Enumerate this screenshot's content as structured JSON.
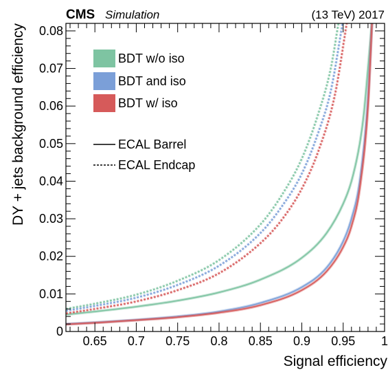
{
  "header": {
    "experiment": "CMS",
    "subtitle": "Simulation",
    "energy_year": "(13 TeV) 2017"
  },
  "chart_data": {
    "type": "line",
    "xlabel": "Signal efficiency",
    "ylabel": "DY + jets background efficiency",
    "xlim": [
      0.615,
      1.0
    ],
    "ylim": [
      0.0,
      0.082
    ],
    "x_ticks": [
      "0.65",
      "0.7",
      "0.75",
      "0.8",
      "0.85",
      "0.9",
      "0.95",
      "1"
    ],
    "y_ticks": [
      "0",
      "0.01",
      "0.02",
      "0.03",
      "0.04",
      "0.05",
      "0.06",
      "0.07",
      "0.08"
    ],
    "colors": {
      "bdt_wo_iso": "#7ec4a2",
      "bdt_and_iso": "#7b9fd8",
      "bdt_w_iso": "#d65a5a"
    },
    "legend_placement": "top-left",
    "legend": [
      {
        "label": "BDT w/o iso",
        "color_key": "bdt_wo_iso",
        "kind": "box"
      },
      {
        "label": "BDT and iso",
        "color_key": "bdt_and_iso",
        "kind": "box"
      },
      {
        "label": "BDT w/ iso",
        "color_key": "bdt_w_iso",
        "kind": "box"
      },
      {
        "label": "ECAL Barrel",
        "kind": "solid"
      },
      {
        "label": "ECAL Endcap",
        "kind": "dashed"
      }
    ],
    "series": [
      {
        "group": "BDT w/o iso",
        "region": "ECAL Barrel",
        "style": "solid",
        "color_key": "bdt_wo_iso",
        "x": [
          0.615,
          0.65,
          0.7,
          0.75,
          0.8,
          0.85,
          0.9,
          0.93,
          0.95,
          0.96,
          0.97,
          0.975,
          0.98,
          0.985
        ],
        "y": [
          0.0045,
          0.0053,
          0.0066,
          0.0082,
          0.0104,
          0.0138,
          0.0196,
          0.0262,
          0.034,
          0.04,
          0.05,
          0.058,
          0.07,
          0.083
        ]
      },
      {
        "group": "BDT and iso",
        "region": "ECAL Barrel",
        "style": "solid",
        "color_key": "bdt_and_iso",
        "x": [
          0.615,
          0.65,
          0.7,
          0.75,
          0.8,
          0.85,
          0.9,
          0.93,
          0.95,
          0.96,
          0.97,
          0.98,
          0.985
        ],
        "y": [
          0.002,
          0.0024,
          0.0031,
          0.004,
          0.0053,
          0.0076,
          0.0118,
          0.017,
          0.024,
          0.03,
          0.04,
          0.062,
          0.083
        ]
      },
      {
        "group": "BDT w/ iso",
        "region": "ECAL Barrel",
        "style": "solid",
        "color_key": "bdt_w_iso",
        "x": [
          0.615,
          0.65,
          0.7,
          0.75,
          0.8,
          0.85,
          0.9,
          0.93,
          0.95,
          0.96,
          0.97,
          0.98,
          0.985
        ],
        "y": [
          0.0019,
          0.0023,
          0.003,
          0.0038,
          0.005,
          0.007,
          0.011,
          0.016,
          0.0225,
          0.028,
          0.038,
          0.06,
          0.083
        ]
      },
      {
        "group": "BDT w/o iso",
        "region": "ECAL Endcap",
        "style": "dashed",
        "color_key": "bdt_wo_iso",
        "x": [
          0.615,
          0.65,
          0.7,
          0.75,
          0.8,
          0.85,
          0.875,
          0.9,
          0.92,
          0.935,
          0.945
        ],
        "y": [
          0.006,
          0.0074,
          0.0098,
          0.0135,
          0.019,
          0.0285,
          0.036,
          0.046,
          0.058,
          0.07,
          0.083
        ]
      },
      {
        "group": "BDT and iso",
        "region": "ECAL Endcap",
        "style": "dashed",
        "color_key": "bdt_and_iso",
        "x": [
          0.615,
          0.65,
          0.7,
          0.75,
          0.8,
          0.85,
          0.875,
          0.9,
          0.92,
          0.935,
          0.95
        ],
        "y": [
          0.0055,
          0.0068,
          0.009,
          0.0124,
          0.0175,
          0.0262,
          0.033,
          0.042,
          0.053,
          0.064,
          0.083
        ]
      },
      {
        "group": "BDT w/ iso",
        "region": "ECAL Endcap",
        "style": "dashed",
        "color_key": "bdt_w_iso",
        "x": [
          0.615,
          0.65,
          0.7,
          0.75,
          0.8,
          0.85,
          0.875,
          0.9,
          0.92,
          0.94,
          0.955
        ],
        "y": [
          0.0048,
          0.006,
          0.008,
          0.011,
          0.0155,
          0.0235,
          0.0295,
          0.038,
          0.048,
          0.063,
          0.083
        ]
      }
    ]
  }
}
